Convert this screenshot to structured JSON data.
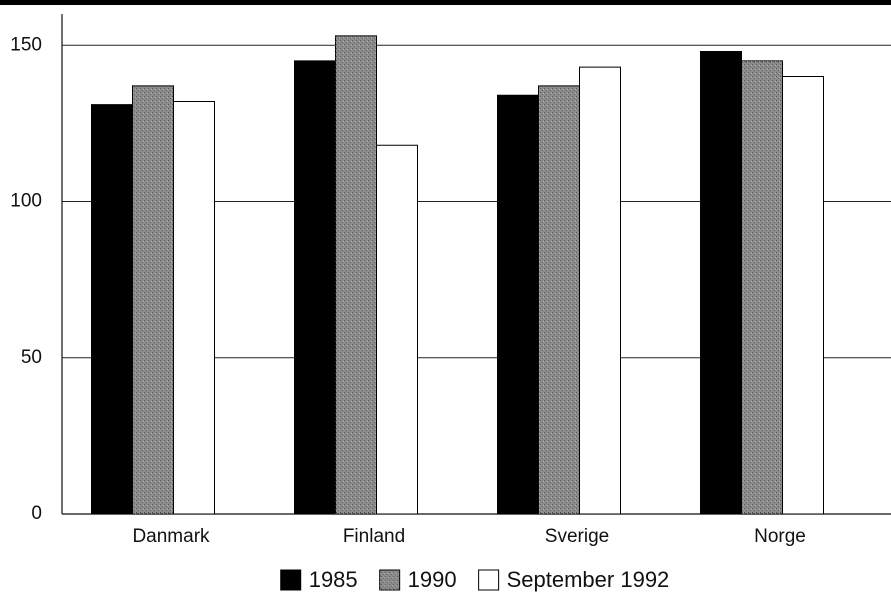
{
  "chart_data": {
    "type": "bar",
    "categories": [
      "Danmark",
      "Finland",
      "Sverige",
      "Norge"
    ],
    "series": [
      {
        "name": "1985",
        "color": "#000000",
        "values": [
          131,
          145,
          134,
          148
        ]
      },
      {
        "name": "1990",
        "color": "#8c8c8c",
        "values": [
          137,
          153,
          137,
          145
        ]
      },
      {
        "name": "September 1992",
        "color": "#ffffff",
        "values": [
          132,
          118,
          143,
          140
        ]
      }
    ],
    "ylim": [
      0,
      160
    ],
    "yticks": [
      0,
      50,
      100,
      150
    ],
    "grid": true,
    "legend": "bottom"
  }
}
